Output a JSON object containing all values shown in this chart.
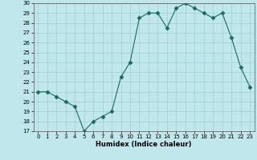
{
  "x": [
    0,
    1,
    2,
    3,
    4,
    5,
    6,
    7,
    8,
    9,
    10,
    11,
    12,
    13,
    14,
    15,
    16,
    17,
    18,
    19,
    20,
    21,
    22,
    23
  ],
  "y": [
    21,
    21,
    20.5,
    20,
    19.5,
    17,
    18,
    18.5,
    19,
    22.5,
    24,
    28.5,
    29,
    29,
    27.5,
    29.5,
    30,
    29.5,
    29,
    28.5,
    29,
    26.5,
    23.5,
    21.5
  ],
  "xlabel": "Humidex (Indice chaleur)",
  "line_color": "#1a6b5a",
  "marker": "D",
  "marker_size": 2.5,
  "bg_color": "#c0e8ec",
  "grid_color": "#9fcdd4",
  "ylim": [
    17,
    30
  ],
  "xlim": [
    -0.5,
    23.5
  ],
  "yticks": [
    17,
    18,
    19,
    20,
    21,
    22,
    23,
    24,
    25,
    26,
    27,
    28,
    29,
    30
  ],
  "xticks": [
    0,
    1,
    2,
    3,
    4,
    5,
    6,
    7,
    8,
    9,
    10,
    11,
    12,
    13,
    14,
    15,
    16,
    17,
    18,
    19,
    20,
    21,
    22,
    23
  ]
}
